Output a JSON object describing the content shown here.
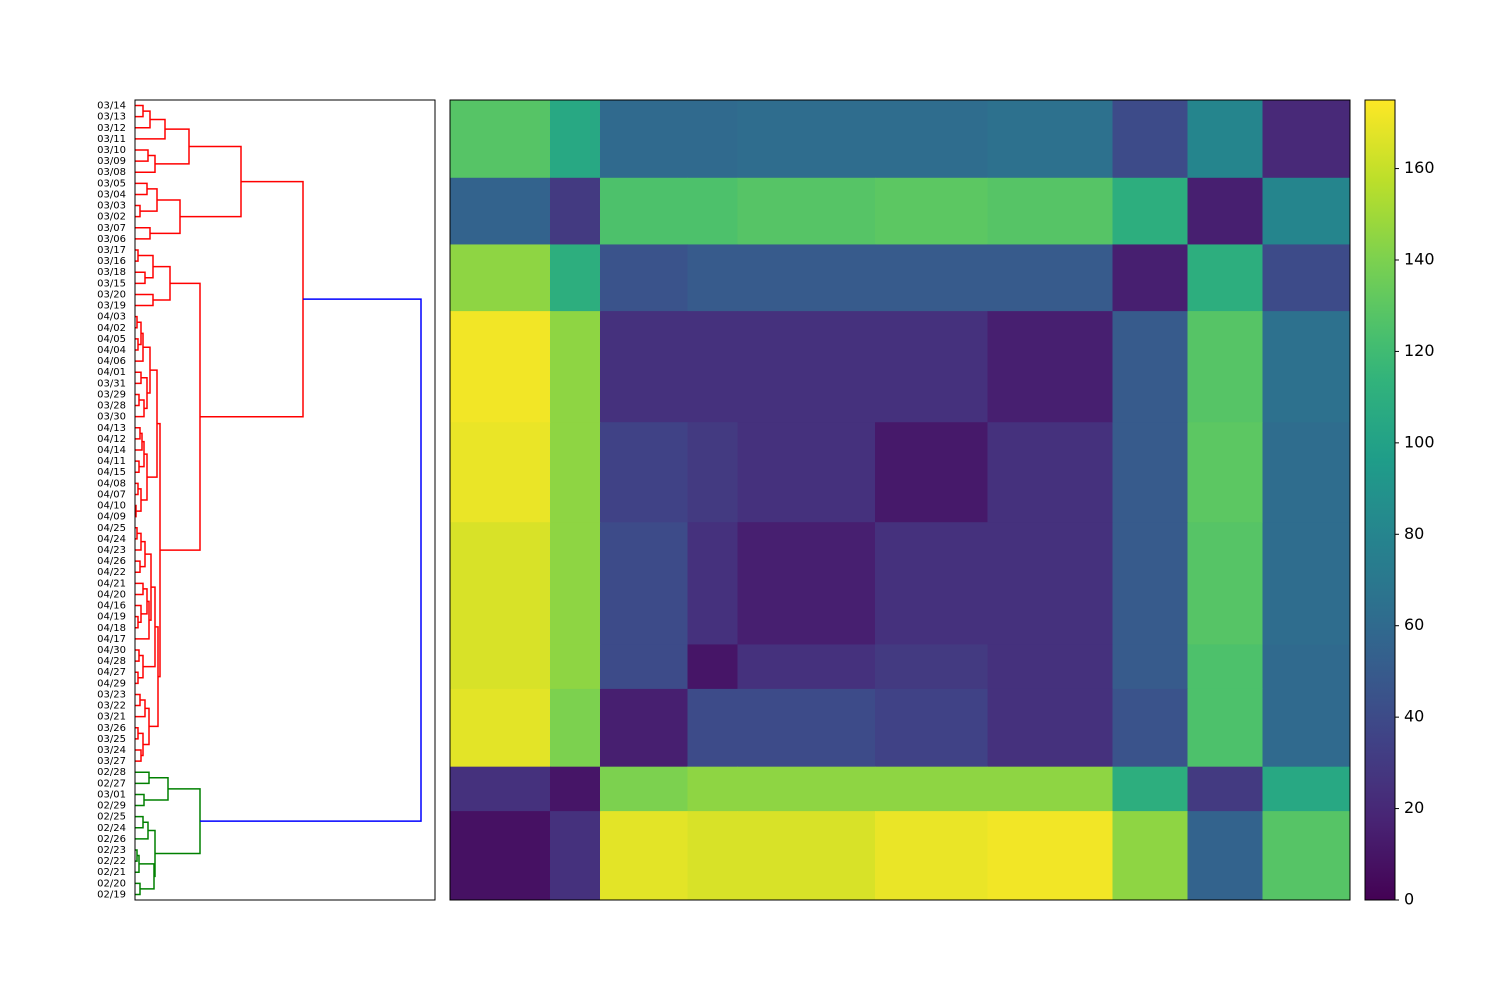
{
  "chart_data": [
    {
      "type": "dendrogram",
      "labels": [
        "03/14",
        "03/13",
        "03/12",
        "03/11",
        "03/10",
        "03/09",
        "03/08",
        "03/05",
        "03/04",
        "03/03",
        "03/02",
        "03/07",
        "03/06",
        "03/17",
        "03/16",
        "03/18",
        "03/15",
        "03/20",
        "03/19",
        "04/03",
        "04/02",
        "04/05",
        "04/04",
        "04/06",
        "04/01",
        "03/31",
        "03/29",
        "03/28",
        "03/30",
        "04/13",
        "04/12",
        "04/14",
        "04/11",
        "04/15",
        "04/08",
        "04/07",
        "04/10",
        "04/09",
        "04/25",
        "04/24",
        "04/23",
        "04/26",
        "04/22",
        "04/21",
        "04/20",
        "04/16",
        "04/19",
        "04/18",
        "04/17",
        "04/30",
        "04/28",
        "04/27",
        "04/29",
        "03/23",
        "03/22",
        "03/21",
        "03/26",
        "03/25",
        "03/24",
        "03/27",
        "02/28",
        "02/27",
        "03/01",
        "02/29",
        "02/25",
        "02/24",
        "02/26",
        "02/23",
        "02/22",
        "02/21",
        "02/20",
        "02/19"
      ],
      "xlim": [
        0,
        300
      ],
      "tree": {
        "height": 286,
        "color": "#0000ff",
        "children": [
          {
            "height": 168,
            "color": "#ff0000",
            "children": [
              [
                [
                  [
                    [
                      [
                        0,
                        1,
                        8
                      ],
                      2,
                      15
                    ],
                    3,
                    30
                  ],
                  [
                    [
                      4,
                      5,
                      13
                    ],
                    6,
                    20
                  ],
                  54
                ],
                [
                  [
                    [
                      7,
                      8,
                      12
                    ],
                    [
                      9,
                      10,
                      5
                    ],
                    22
                  ],
                  [
                    11,
                    12,
                    15
                  ],
                  45
                ],
                106
              ],
              [
                [
                  [
                    [
                      13,
                      14,
                      3
                    ],
                    [
                      15,
                      16,
                      10
                    ],
                    18
                  ],
                  [
                    17,
                    18,
                    18
                  ],
                  35
                ],
                [
                  [
                    [
                      [
                        [
                          [
                            19,
                            20,
                            2
                          ],
                          [
                            21,
                            22,
                            3
                          ],
                          6
                        ],
                        23,
                        8
                      ],
                      [
                        [
                          24,
                          25,
                          6
                        ],
                        [
                          [
                            26,
                            27,
                            4
                          ],
                          28,
                          9
                        ],
                        12
                      ],
                      15
                    ],
                    [
                      [
                        [
                          [
                            29,
                            30,
                            5
                          ],
                          31,
                          7
                        ],
                        [
                          32,
                          33,
                          4
                        ],
                        9
                      ],
                      [
                        [
                          34,
                          35,
                          3
                        ],
                        [
                          36,
                          37,
                          1
                        ],
                        6
                      ],
                      12
                    ],
                    22
                  ],
                  [
                    [
                      [
                        [
                          [
                            [
                              38,
                              39,
                              2
                            ],
                            40,
                            6
                          ],
                          [
                            41,
                            42,
                            5
                          ],
                          10
                        ],
                        [
                          [
                            [
                              43,
                              44,
                              8
                            ],
                            [
                              45,
                              [
                                46,
                                47,
                                3
                              ],
                              6
                            ],
                            12
                          ],
                          48,
                          14
                        ],
                        16
                      ],
                      [
                        [
                          49,
                          50,
                          4
                        ],
                        [
                          51,
                          52,
                          3
                        ],
                        8
                      ],
                      20
                    ],
                    [
                      [
                        [
                          53,
                          54,
                          5
                        ],
                        55,
                        10
                      ],
                      [
                        [
                          56,
                          57,
                          3
                        ],
                        [
                          58,
                          59,
                          6
                        ],
                        8
                      ],
                      14
                    ],
                    23
                  ],
                  25
                ],
                65
              ]
            ]
          },
          {
            "height": 65,
            "color": "#008000",
            "children": [
              [
                [
                  60,
                  61,
                  14
                ],
                [
                  62,
                  63,
                  9
                ],
                33
              ],
              [
                [
                  [
                    64,
                    65,
                    8
                  ],
                  66,
                  13
                ],
                [
                  [
                    [
                      67,
                      68,
                      2
                    ],
                    69,
                    4
                  ],
                  [
                    70,
                    71,
                    5
                  ],
                  19
                ],
                20
              ]
            ]
          }
        ]
      }
    },
    {
      "type": "heatmap",
      "block_sizes": [
        7,
        6,
        6,
        10,
        9,
        11,
        4,
        7,
        4,
        8
      ],
      "values": [
        [
          128,
          105,
          60,
          60,
          62,
          62,
          65,
          40,
          80,
          20
        ],
        [
          55,
          30,
          125,
          125,
          128,
          130,
          128,
          110,
          15,
          80
        ],
        [
          145,
          110,
          45,
          50,
          50,
          50,
          50,
          15,
          110,
          40
        ],
        [
          172,
          145,
          25,
          25,
          25,
          25,
          15,
          50,
          128,
          65
        ],
        [
          170,
          145,
          35,
          30,
          25,
          12,
          25,
          50,
          130,
          62
        ],
        [
          165,
          145,
          40,
          25,
          15,
          25,
          25,
          50,
          128,
          62
        ],
        [
          165,
          145,
          40,
          10,
          25,
          30,
          25,
          50,
          125,
          60
        ],
        [
          168,
          140,
          15,
          40,
          40,
          35,
          25,
          45,
          125,
          60
        ],
        [
          25,
          10,
          140,
          145,
          145,
          145,
          145,
          110,
          30,
          105
        ],
        [
          8,
          25,
          168,
          165,
          165,
          170,
          172,
          145,
          55,
          128
        ]
      ],
      "colormap": "viridis",
      "colorbar": {
        "ylim": [
          0,
          175
        ],
        "yticks": [
          0,
          20,
          40,
          60,
          80,
          100,
          120,
          140,
          160
        ]
      }
    }
  ]
}
